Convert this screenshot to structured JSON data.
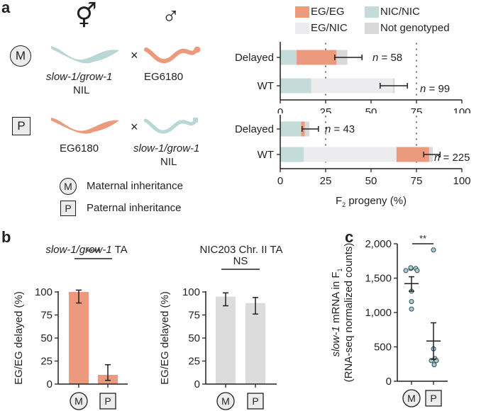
{
  "colors": {
    "eg_eg": "#ec9a7e",
    "nic_nic": "#c3dbd9",
    "eg_nic": "#ececee",
    "not_genotyped": "#d9d9d9",
    "worm_teal": "#b8d7d5",
    "worm_salmon": "#ec9a7e",
    "bar_grey": "#dcdcdc",
    "dot_fill": "#a9cfd3"
  },
  "panel_a": {
    "letter": "a",
    "hermaphrodite_symbol": "⚥",
    "male_symbol": "♂",
    "cross_symbol": "×",
    "cross_m": {
      "badge": "M",
      "left_label_1": "slow-1/grow-1",
      "left_label_2": "NIL",
      "right_label": "EG6180"
    },
    "cross_p": {
      "badge": "P",
      "left_label": "EG6180",
      "right_label_1": "slow-1/grow-1",
      "right_label_2": "NIL"
    },
    "key": [
      {
        "badge": "M",
        "label": "Maternal inheritance"
      },
      {
        "badge": "P",
        "label": "Paternal inheritance"
      }
    ]
  },
  "panel_b": {
    "letter": "b"
  },
  "panel_c": {
    "letter": "c"
  },
  "chart_data": [
    {
      "id": "a-maternal",
      "type": "bar",
      "orientation": "horizontal-stacked",
      "legend": [
        "EG/EG",
        "NIC/NIC",
        "EG/NIC",
        "Not genotyped"
      ],
      "legend_placement": "top",
      "categories": [
        "Delayed",
        "WT"
      ],
      "series": [
        {
          "name": "NIC/NIC",
          "values": [
            9,
            17
          ]
        },
        {
          "name": "EG/EG",
          "values": [
            22,
            0
          ]
        },
        {
          "name": "EG/NIC",
          "values": [
            0,
            45
          ]
        },
        {
          "name": "Not genotyped",
          "values": [
            6,
            1
          ]
        }
      ],
      "error_bars": [
        [
          30,
          45
        ],
        [
          55,
          70
        ]
      ],
      "annotations": [
        "n = 58",
        "n = 99"
      ],
      "reference_lines": [
        25,
        75
      ],
      "xlim": [
        0,
        100
      ],
      "xticks": [
        "0",
        "25",
        "50",
        "75",
        "100"
      ]
    },
    {
      "id": "a-paternal",
      "type": "bar",
      "orientation": "horizontal-stacked",
      "categories": [
        "Delayed",
        "WT"
      ],
      "series": [
        {
          "name": "NIC/NIC",
          "values": [
            11.5,
            13
          ]
        },
        {
          "name": "EG/NIC",
          "values": [
            0,
            51
          ]
        },
        {
          "name": "EG/EG",
          "values": [
            2,
            18
          ]
        },
        {
          "name": "Not genotyped",
          "values": [
            2.5,
            2
          ]
        }
      ],
      "error_bars": [
        [
          12,
          21
        ],
        [
          79,
          88
        ]
      ],
      "annotations": [
        "n = 43",
        "n = 225"
      ],
      "reference_lines": [
        25,
        75
      ],
      "xlim": [
        0,
        100
      ],
      "xticks": [
        "0",
        "25",
        "50",
        "75",
        "100"
      ],
      "xlabel_main": "F",
      "xlabel_sub": "2",
      "xlabel_rest": " progeny (%)"
    },
    {
      "id": "b-slow1",
      "type": "bar",
      "title_italic": "slow-1/grow-1",
      "title_rest": " TA",
      "ylabel": "EG/EG delayed (%)",
      "categories": [
        "M",
        "P"
      ],
      "values": [
        100,
        10
      ],
      "error_bars": [
        [
          88,
          102
        ],
        [
          4,
          21
        ]
      ],
      "significance": "****",
      "ylim": [
        0,
        100
      ],
      "yticks": [
        "0",
        "25",
        "50",
        "75",
        "100"
      ]
    },
    {
      "id": "b-nic203",
      "type": "bar",
      "title": "NIC203 Chr. II TA",
      "ylabel": "EG/EG delayed (%)",
      "categories": [
        "M",
        "P"
      ],
      "values": [
        95,
        88
      ],
      "error_bars": [
        [
          85,
          99
        ],
        [
          76,
          94
        ]
      ],
      "significance": "NS",
      "ylim": [
        0,
        100
      ],
      "yticks": [
        "0",
        "25",
        "50",
        "75",
        "100"
      ]
    },
    {
      "id": "c-mrna",
      "type": "scatter",
      "ylabel_italic": "slow-1",
      "ylabel_rest": " mRNA in F",
      "ylabel_sub": "1",
      "ylabel_line2": "(RNA-seq normalized counts)",
      "categories": [
        "M",
        "P"
      ],
      "points": {
        "M": [
          1610,
          1640,
          1610,
          1640,
          1610,
          1310,
          1160,
          1050
        ],
        "P": [
          1910,
          470,
          330,
          300,
          300,
          240
        ]
      },
      "means": [
        1420,
        585
      ],
      "sem": [
        [
          1310,
          1520
        ],
        [
          320,
          850
        ]
      ],
      "significance": "**",
      "ylim": [
        0,
        2000
      ],
      "yticks": [
        "0",
        "500",
        "1,000",
        "1,500",
        "2,000"
      ]
    }
  ]
}
